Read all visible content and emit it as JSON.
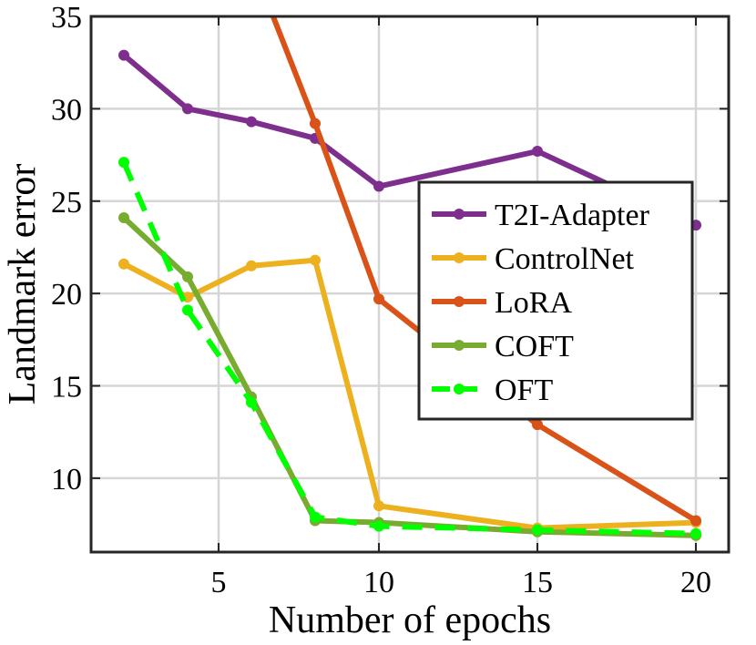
{
  "chart_data": {
    "type": "line",
    "xlabel": "Number of epochs",
    "ylabel": "Landmark error",
    "x_categories": [
      "2",
      "4",
      "6",
      "8",
      "10",
      "15",
      "20"
    ],
    "x_tick_labels": [
      "5",
      "10",
      "15",
      "20"
    ],
    "y_tick_labels": [
      "10",
      "15",
      "20",
      "25",
      "30",
      "35"
    ],
    "ylim": [
      6,
      35
    ],
    "grid": true,
    "legend_position": "center-right",
    "series": [
      {
        "name": "T2I-Adapter",
        "color": "#7E2F8E",
        "style": "solid",
        "x": [
          "2",
          "4",
          "6",
          "8",
          "10",
          "15",
          "20"
        ],
        "values": [
          32.9,
          30.0,
          29.3,
          28.4,
          25.8,
          27.7,
          23.7
        ]
      },
      {
        "name": "ControlNet",
        "color": "#EDB120",
        "style": "solid",
        "x": [
          "2",
          "4",
          "6",
          "8",
          "10",
          "15",
          "20"
        ],
        "values": [
          21.6,
          19.8,
          21.5,
          21.8,
          8.5,
          7.3,
          7.6
        ]
      },
      {
        "name": "LoRA",
        "color": "#D95319",
        "style": "solid",
        "x": [
          "6",
          "8",
          "10",
          "15",
          "20"
        ],
        "values": [
          38.0,
          29.2,
          19.7,
          12.9,
          7.7
        ]
      },
      {
        "name": "COFT",
        "color": "#77AC30",
        "style": "solid",
        "x": [
          "2",
          "4",
          "6",
          "8",
          "10",
          "15",
          "20"
        ],
        "values": [
          24.1,
          20.9,
          14.4,
          7.7,
          7.6,
          7.1,
          6.9
        ]
      },
      {
        "name": "OFT",
        "color": "#00FF00",
        "style": "dashed",
        "x": [
          "2",
          "4",
          "6",
          "8",
          "10",
          "15",
          "20"
        ],
        "values": [
          27.1,
          19.1,
          14.1,
          7.9,
          7.4,
          7.2,
          7.0
        ]
      }
    ]
  }
}
